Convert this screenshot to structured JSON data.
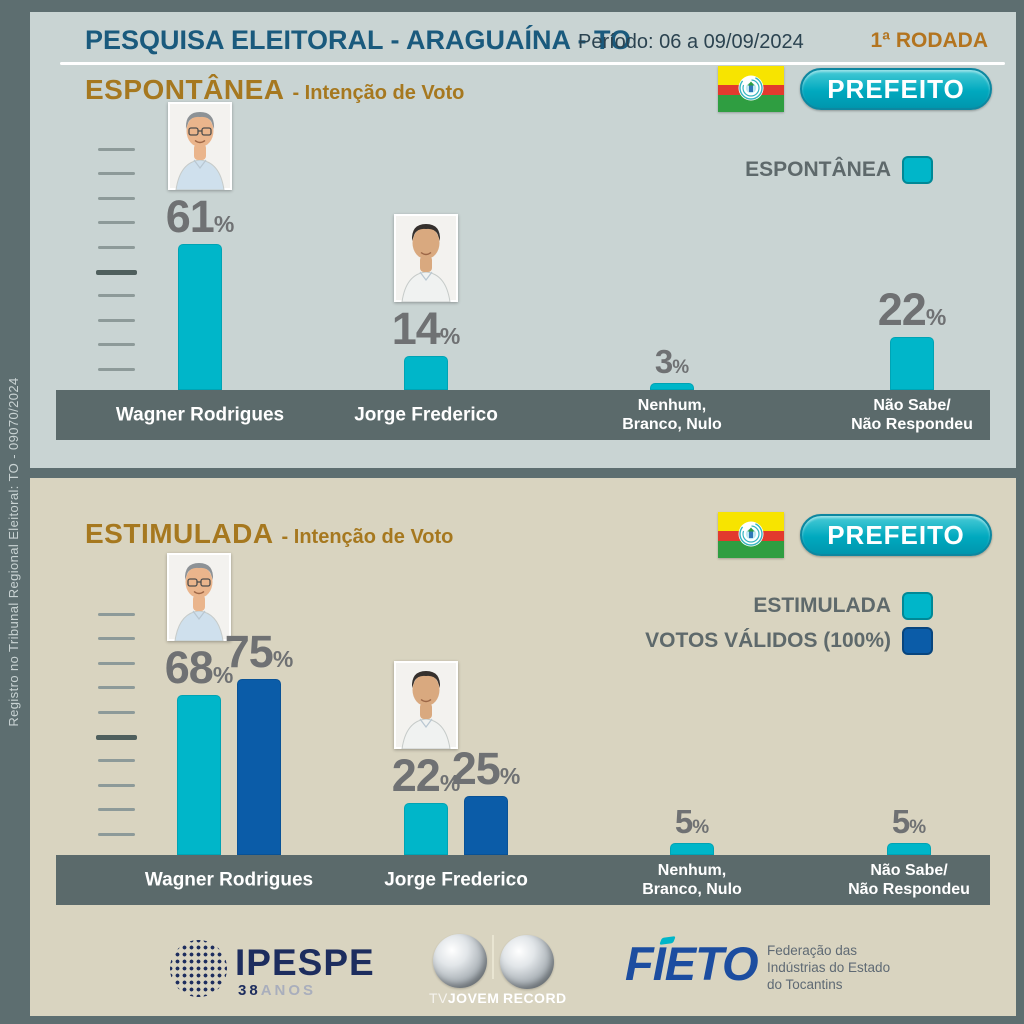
{
  "sidebar": {
    "registro": "Registro no Tribunal Regional Eleitoral: TO - 09070/2024"
  },
  "header": {
    "title": "PESQUISA ELEITORAL - ARAGUAÍNA - TO",
    "period": "Período: 06 a 09/09/2024",
    "round": "1ª RODADA"
  },
  "badge_label": "PREFEITO",
  "panel1": {
    "title": "ESPONTÂNEA",
    "title_suffix": "- Intenção de Voto",
    "legend": [
      {
        "label": "ESPONTÂNEA",
        "color": "#00b6c9"
      }
    ]
  },
  "panel2": {
    "title": "ESTIMULADA",
    "title_suffix": "- Intenção de Voto",
    "legend": [
      {
        "label": "ESTIMULADA",
        "color": "#00b6c9"
      },
      {
        "label": "VOTOS VÁLIDOS (100%)",
        "color": "#0b5ca8"
      }
    ]
  },
  "chart_data": [
    {
      "type": "bar",
      "title": "ESPONTÂNEA - Intenção de Voto",
      "unit": "%",
      "ylim": [
        0,
        100
      ],
      "grid": false,
      "yaxis": "10 unlabeled tick marks",
      "categories": [
        "Wagner Rodrigues",
        "Jorge Frederico",
        "Nenhum,\nBranco, Nulo",
        "Não Sabe/\nNão Respondeu"
      ],
      "avatars": [
        "wagner-rodrigues",
        "jorge-frederico",
        null,
        null
      ],
      "series": [
        {
          "name": "ESPONTÂNEA",
          "color": "#00b6c9",
          "values": [
            61,
            14,
            3,
            22
          ]
        }
      ]
    },
    {
      "type": "bar",
      "title": "ESTIMULADA - Intenção de Voto",
      "unit": "%",
      "ylim": [
        0,
        100
      ],
      "grid": false,
      "yaxis": "10 unlabeled tick marks",
      "categories": [
        "Wagner Rodrigues",
        "Jorge Frederico",
        "Nenhum,\nBranco, Nulo",
        "Não Sabe/\nNão Respondeu"
      ],
      "avatars": [
        "wagner-rodrigues",
        "jorge-frederico",
        null,
        null
      ],
      "series": [
        {
          "name": "ESTIMULADA",
          "color": "#00b6c9",
          "values": [
            68,
            22,
            5,
            5
          ]
        },
        {
          "name": "VOTOS VÁLIDOS (100%)",
          "color": "#0b5ca8",
          "values": [
            75,
            25,
            null,
            null
          ]
        }
      ]
    }
  ],
  "footer": {
    "ipespe": {
      "name": "IPESPE",
      "years": "38",
      "anos": "ANOS"
    },
    "tvjovem": {
      "tv": "TV",
      "jovem": "JOVEM"
    },
    "record": {
      "name": "RECORD"
    },
    "fieto": {
      "name": "FIETO",
      "desc_lines": [
        "Federação das",
        "Indústrias do Estado",
        "do Tocantins"
      ]
    }
  },
  "colors": {
    "frame": "#5d6e70",
    "panel1_bg": "#c9d4d3",
    "panel2_bg": "#d9d4c0",
    "teal_bar": "#00b6c9",
    "blue_bar": "#0b5ca8",
    "band": "#5b6a6b",
    "title_blue": "#1a5a7d",
    "gold": "#a6781f",
    "round_orange": "#b3741f",
    "value_gray": "#6f7173"
  }
}
